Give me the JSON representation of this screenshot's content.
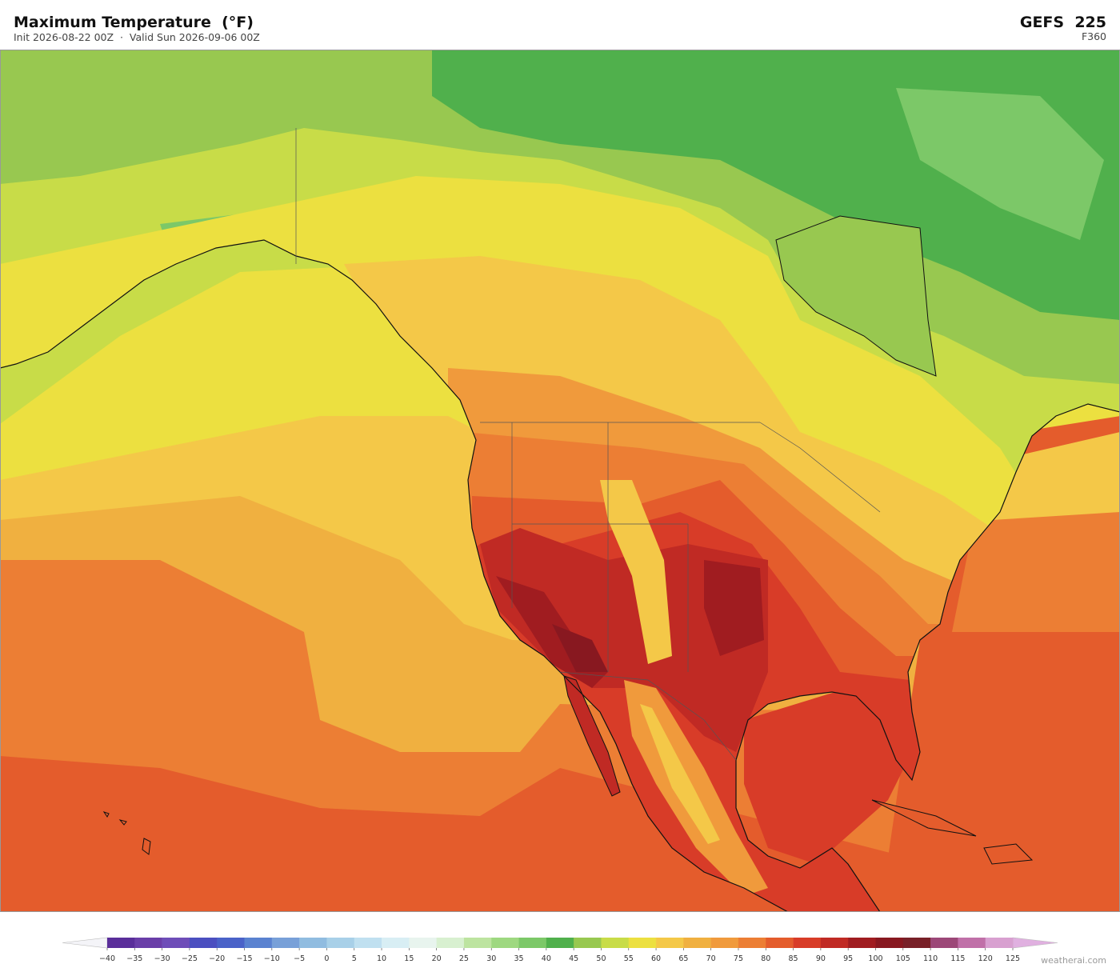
{
  "header": {
    "title": "Maximum Temperature  (°F)",
    "subtitle": "Init 2026-08-22 00Z  ·  Valid Sun 2026-09-06 00Z",
    "model": "GEFS  225",
    "forecast_hour": "F360"
  },
  "colorbar": {
    "ticks": [
      {
        "value": -40,
        "label": "−40"
      },
      {
        "value": -35,
        "label": "−35"
      },
      {
        "value": -30,
        "label": "−30"
      },
      {
        "value": -25,
        "label": "−25"
      },
      {
        "value": -20,
        "label": "−20"
      },
      {
        "value": -15,
        "label": "−15"
      },
      {
        "value": -10,
        "label": "−10"
      },
      {
        "value": -5,
        "label": "−5"
      },
      0,
      5,
      10,
      15,
      20,
      25,
      30,
      35,
      40,
      45,
      50,
      55,
      60,
      65,
      70,
      75,
      80,
      85,
      90,
      95,
      100,
      105,
      110,
      115,
      120,
      125
    ],
    "colors": [
      "#5a2e9a",
      "#6a3ea8",
      "#6e4db8",
      "#4b4fc0",
      "#4a62c8",
      "#5a82d0",
      "#78a0d8",
      "#90bce0",
      "#a8d0e8",
      "#c0e0f0",
      "#d8eef4",
      "#e8f4ee",
      "#d8f0d0",
      "#bde4a0",
      "#9ed880",
      "#7cc868",
      "#50b04c",
      "#98c850",
      "#c8dc48",
      "#ece040",
      "#f4c848",
      "#f0b040",
      "#f09a3c",
      "#ec7e34",
      "#e45c2c",
      "#d83c28",
      "#c02a24",
      "#a01c20",
      "#881820",
      "#782028",
      "#9c4878",
      "#c070a8",
      "#d8a0d0"
    ],
    "under_color": "#f4f4f8",
    "over_color": "#e0b0e0"
  },
  "footer": {
    "credit": "weatherai.com"
  }
}
